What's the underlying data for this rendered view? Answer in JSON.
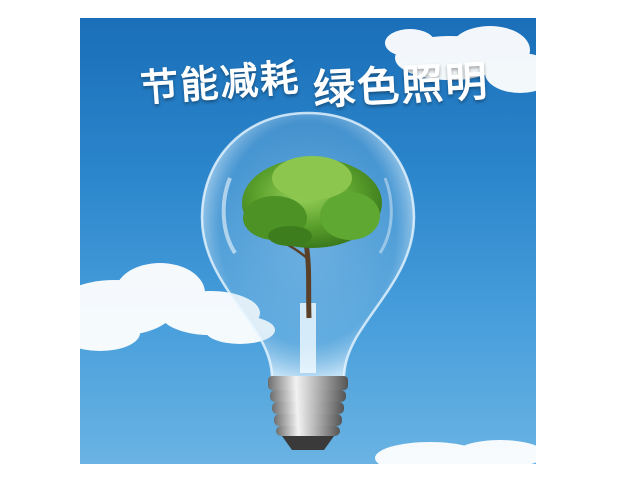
{
  "poster": {
    "slogan_left": "节能减耗",
    "slogan_right": "绿色照明"
  },
  "colors": {
    "sky_top": "#1a6fb8",
    "sky_bottom": "#6ab3e3",
    "cloud": "#ffffff",
    "tree": "#5aa02c",
    "slogan_text": "#ffffff"
  }
}
